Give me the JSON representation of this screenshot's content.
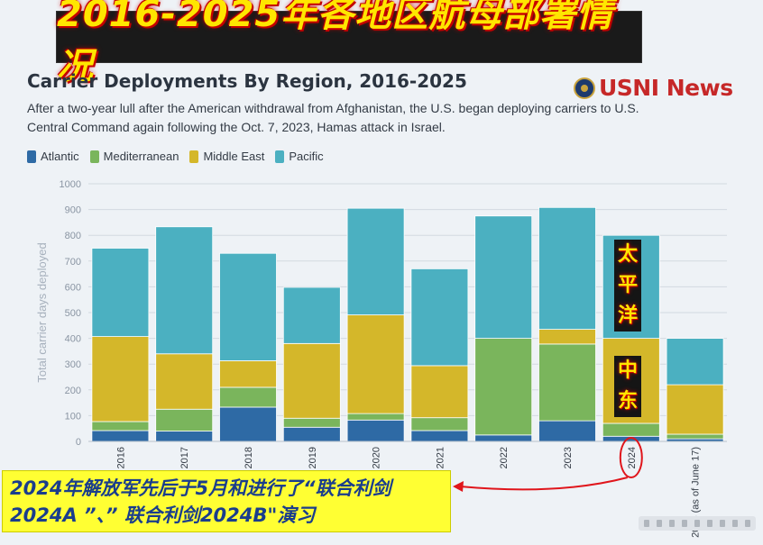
{
  "banner": {
    "text": "2016-2025年各地区航母部署情况"
  },
  "logo": {
    "text": "USNI News"
  },
  "annotations": {
    "note": "2024年解放军先后于5月和进行了“联合利剑2024A ”、” 联合利剑2024B\"演习",
    "pacific_label": "太平洋",
    "middle_east_label": "中东"
  },
  "colors": {
    "Atlantic": "#2e6aa5",
    "Mediterranean": "#7ab55c",
    "Middle East": "#d4b72a",
    "Pacific": "#4bb0c1",
    "highlight": "#e0151b"
  },
  "chart_data": {
    "type": "bar",
    "stacked": true,
    "title": "Carrier Deployments By Region, 2016-2025",
    "subtitle": "After a two-year lull after the American withdrawal from Afghanistan, the U.S. began deploying carriers to U.S. Central Command again following the Oct. 7, 2023, Hamas attack in Israel.",
    "ylabel": "Total carrier days deployed",
    "xlabel": "",
    "ylim": [
      0,
      1000
    ],
    "yticks": [
      0,
      100,
      200,
      300,
      400,
      500,
      600,
      700,
      800,
      900,
      1000
    ],
    "grid": true,
    "legend_position": "top-left",
    "categories": [
      "2016",
      "2017",
      "2018",
      "2019",
      "2020",
      "2021",
      "2022",
      "2023",
      "2024",
      "2025 (as of June 17)"
    ],
    "series": [
      {
        "name": "Atlantic",
        "values": [
          42,
          40,
          133,
          55,
          83,
          42,
          25,
          80,
          20,
          10
        ]
      },
      {
        "name": "Mediterranean",
        "values": [
          35,
          85,
          77,
          35,
          25,
          50,
          375,
          298,
          50,
          18
        ]
      },
      {
        "name": "Middle East",
        "values": [
          330,
          215,
          103,
          290,
          383,
          202,
          0,
          57,
          330,
          192
        ]
      },
      {
        "name": "Pacific",
        "values": [
          343,
          493,
          417,
          218,
          414,
          376,
          475,
          473,
          400,
          180
        ]
      }
    ],
    "highlighted_category": "2024"
  }
}
